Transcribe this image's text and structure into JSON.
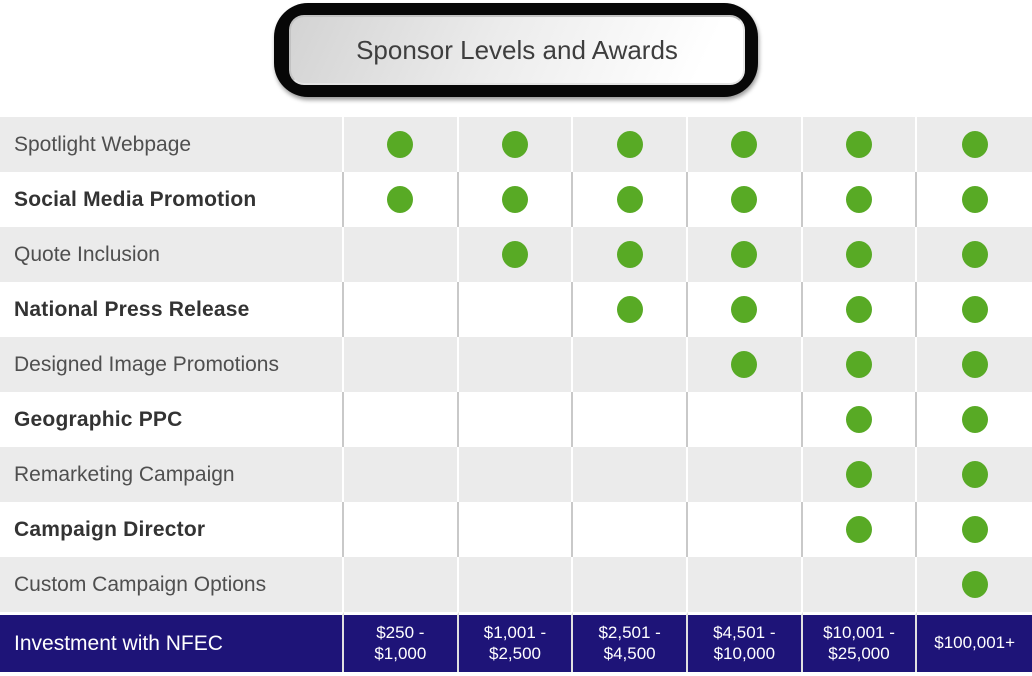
{
  "title": "Sponsor Levels and Awards",
  "colors": {
    "dot_green": "#58aa25",
    "footer_navy": "#1e1478",
    "row_gray": "#ebebeb"
  },
  "table": {
    "feature_rows": [
      {
        "label": "Spotlight Webpage",
        "included": [
          true,
          true,
          true,
          true,
          true,
          true
        ]
      },
      {
        "label": "Social Media Promotion",
        "included": [
          true,
          true,
          true,
          true,
          true,
          true
        ]
      },
      {
        "label": "Quote Inclusion",
        "included": [
          false,
          true,
          true,
          true,
          true,
          true
        ]
      },
      {
        "label": "National Press Release",
        "included": [
          false,
          false,
          true,
          true,
          true,
          true
        ]
      },
      {
        "label": "Designed Image Promotions",
        "included": [
          false,
          false,
          false,
          true,
          true,
          true
        ]
      },
      {
        "label": "Geographic PPC",
        "included": [
          false,
          false,
          false,
          false,
          true,
          true
        ]
      },
      {
        "label": "Remarketing Campaign",
        "included": [
          false,
          false,
          false,
          false,
          true,
          true
        ]
      },
      {
        "label": "Campaign Director",
        "included": [
          false,
          false,
          false,
          false,
          true,
          true
        ]
      },
      {
        "label": "Custom Campaign Options",
        "included": [
          false,
          false,
          false,
          false,
          false,
          true
        ]
      }
    ],
    "footer": {
      "label": "Investment with NFEC",
      "tiers": [
        "$250 -\n$1,000",
        "$1,001 -\n$2,500",
        "$2,501 -\n$4,500",
        "$4,501 -\n$10,000",
        "$10,001 -\n$25,000",
        "$100,001+"
      ]
    }
  }
}
